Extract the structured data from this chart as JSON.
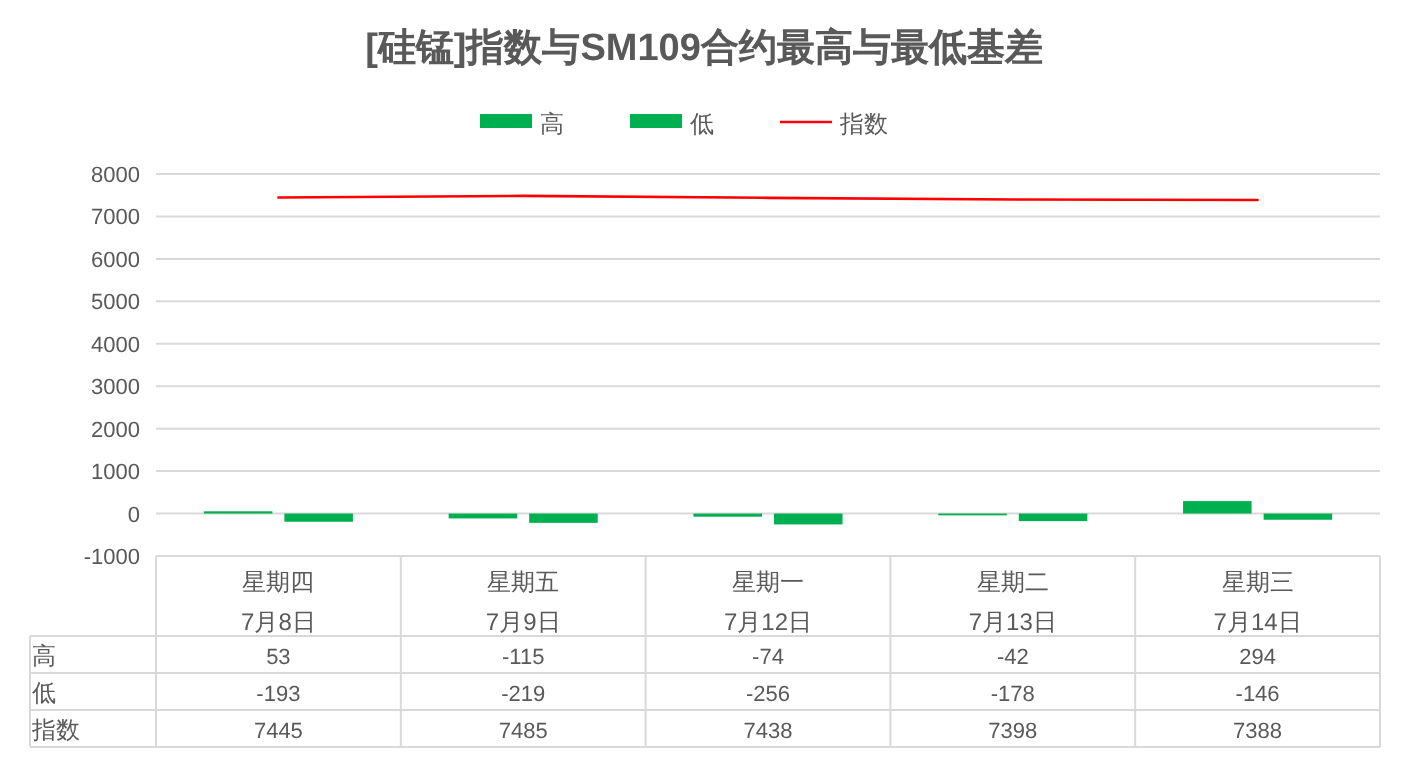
{
  "chart_data": {
    "type": "bar",
    "title": "[硅锰]指数与SM109合约最高与最低基差",
    "categories": [
      "星期四\n7月8日",
      "星期五\n7月9日",
      "星期一\n7月12日",
      "星期二\n7月13日",
      "星期三\n7月14日"
    ],
    "series": [
      {
        "name": "高",
        "color": "#00b050",
        "values": [
          53,
          -115,
          -74,
          -42,
          294
        ]
      },
      {
        "name": "低",
        "color": "#00b050",
        "values": [
          -193,
          -219,
          -256,
          -178,
          -146
        ]
      },
      {
        "name": "指数",
        "type": "line",
        "color": "#ff0000",
        "values": [
          7445,
          7485,
          7438,
          7398,
          7388
        ]
      }
    ],
    "ylim": [
      -1000,
      8000
    ],
    "yticks": [
      -1000,
      0,
      1000,
      2000,
      3000,
      4000,
      5000,
      6000,
      7000,
      8000
    ],
    "grid": "y",
    "legend": "top",
    "data_labels": true
  }
}
